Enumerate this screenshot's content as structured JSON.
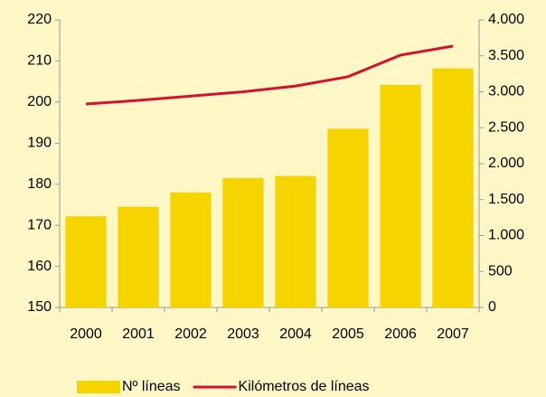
{
  "chart_data": {
    "type": "bar",
    "categories": [
      "2000",
      "2001",
      "2002",
      "2003",
      "2004",
      "2005",
      "2006",
      "2007"
    ],
    "series": [
      {
        "name": "Nº líneas",
        "type": "bar",
        "color": "#f5d400",
        "values": [
          172.2,
          174.5,
          178,
          181.5,
          182,
          193.5,
          204.2,
          208.2
        ]
      },
      {
        "name": "Kilómetros de líneas",
        "type": "line",
        "axis": "y2",
        "color": "#d2122e",
        "values": [
          2830,
          2880,
          2940,
          3000,
          3080,
          3210,
          3510,
          3635
        ]
      }
    ],
    "ylim": [
      150,
      220
    ],
    "yticks": [
      150,
      160,
      170,
      180,
      190,
      200,
      210,
      220
    ],
    "y2lim": [
      0,
      4000
    ],
    "y2ticks": [
      0,
      500,
      {
        "value": 1000,
        "label": "1.000"
      },
      {
        "value": 1500,
        "label": "1.500"
      },
      {
        "value": 2000,
        "label": "2.000"
      },
      {
        "value": 2500,
        "label": "2.500"
      },
      {
        "value": 3000,
        "label": "3.000"
      },
      {
        "value": 3500,
        "label": "3.500"
      },
      {
        "value": 4000,
        "label": "4.000"
      }
    ],
    "grid": false,
    "legend": "bottom"
  }
}
